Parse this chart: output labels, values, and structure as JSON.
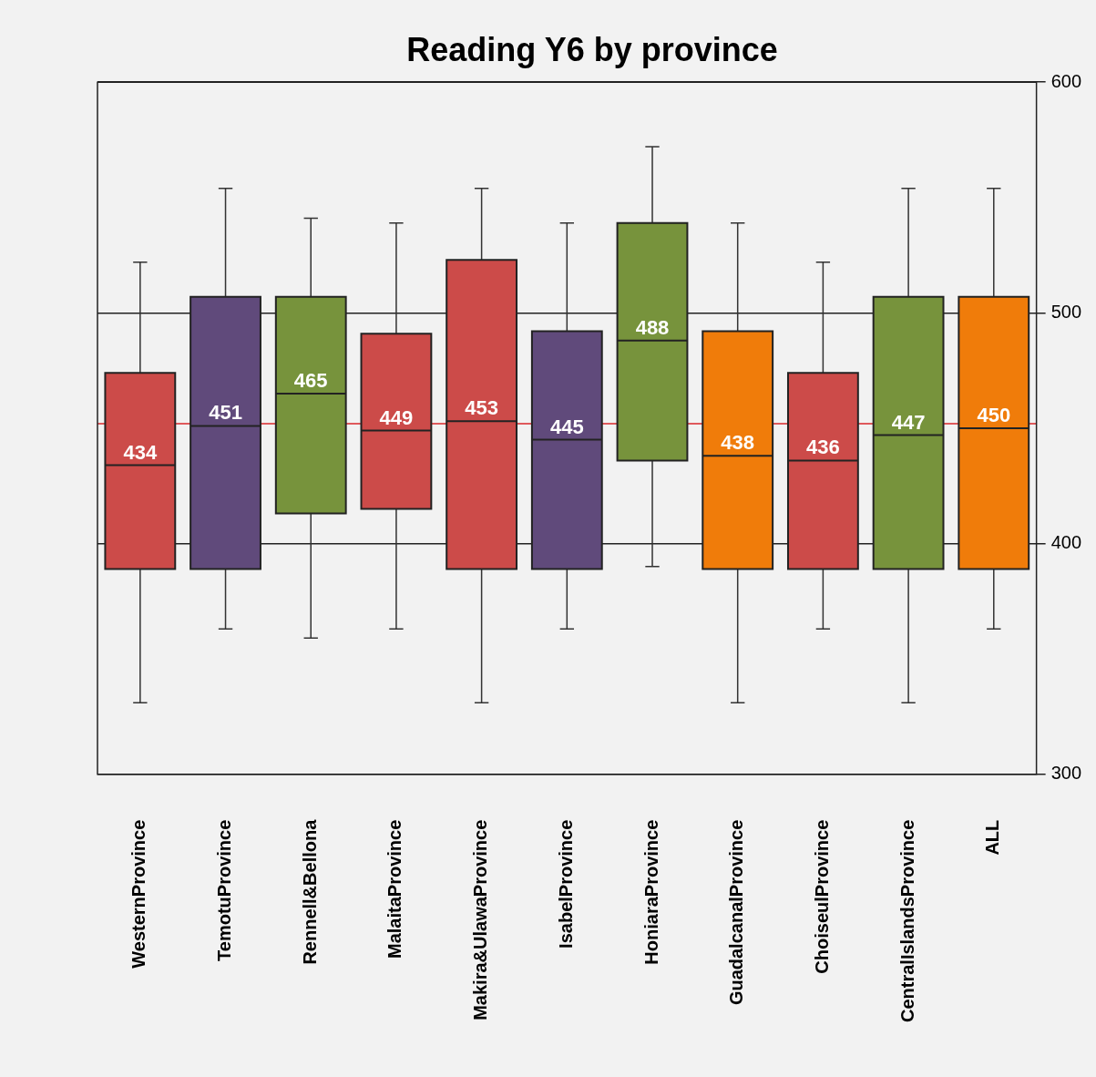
{
  "chart_data": {
    "type": "box",
    "title": "Reading Y6 by province",
    "categories": [
      "WesternProvince",
      "TemotuProvince",
      "Rennell&Bellona",
      "MalaitaProvince",
      "Makira&UlawaProvince",
      "IsabelProvince",
      "HoniaraProvince",
      "GuadalcanalProvince",
      "ChoiseulProvince",
      "CentralIslandsProvince",
      "ALL"
    ],
    "boxes": [
      {
        "low": 331,
        "q1": 389,
        "median": 434,
        "q3": 474,
        "high": 522
      },
      {
        "low": 363,
        "q1": 389,
        "median": 451,
        "q3": 507,
        "high": 554
      },
      {
        "low": 359,
        "q1": 413,
        "median": 465,
        "q3": 507,
        "high": 541
      },
      {
        "low": 363,
        "q1": 415,
        "median": 449,
        "q3": 491,
        "high": 539
      },
      {
        "low": 331,
        "q1": 389,
        "median": 453,
        "q3": 523,
        "high": 554
      },
      {
        "low": 363,
        "q1": 389,
        "median": 445,
        "q3": 492,
        "high": 539
      },
      {
        "low": 390,
        "q1": 436,
        "median": 488,
        "q3": 539,
        "high": 572
      },
      {
        "low": 331,
        "q1": 389,
        "median": 438,
        "q3": 492,
        "high": 539
      },
      {
        "low": 363,
        "q1": 389,
        "median": 436,
        "q3": 474,
        "high": 522
      },
      {
        "low": 331,
        "q1": 389,
        "median": 447,
        "q3": 507,
        "high": 554
      },
      {
        "low": 363,
        "q1": 389,
        "median": 450,
        "q3": 507,
        "high": 554
      }
    ],
    "colors": [
      "#cc4b49",
      "#604a7b",
      "#77933c",
      "#cc4b49",
      "#cc4b49",
      "#604a7b",
      "#77933c",
      "#f07c0a",
      "#cc4b49",
      "#77933c",
      "#f07c0a"
    ],
    "ylim": [
      300,
      600
    ],
    "yticks": [
      300,
      400,
      500,
      600
    ],
    "grid": "y",
    "legend": false,
    "annotations": [
      {
        "text": "434",
        "x": "WesternProvince",
        "y": 434
      },
      {
        "text": "451",
        "x": "TemotuProvince",
        "y": 451
      },
      {
        "text": "465",
        "x": "Rennell&Bellona",
        "y": 465
      },
      {
        "text": "449",
        "x": "MalaitaProvince",
        "y": 449
      },
      {
        "text": "453",
        "x": "Makira&UlawaProvince",
        "y": 453
      },
      {
        "text": "445",
        "x": "IsabelProvince",
        "y": 445
      },
      {
        "text": "488",
        "x": "HoniaraProvince",
        "y": 488
      },
      {
        "text": "438",
        "x": "GuadalcanalProvince",
        "y": 438
      },
      {
        "text": "436",
        "x": "ChoiseulProvince",
        "y": 436
      },
      {
        "text": "447",
        "x": "CentralIslandsProvince",
        "y": 447
      },
      {
        "text": "450",
        "x": "ALL",
        "y": 450
      }
    ],
    "ref_lines": [
      {
        "axis": "y",
        "value": 452,
        "color": "#d9262a"
      }
    ]
  }
}
